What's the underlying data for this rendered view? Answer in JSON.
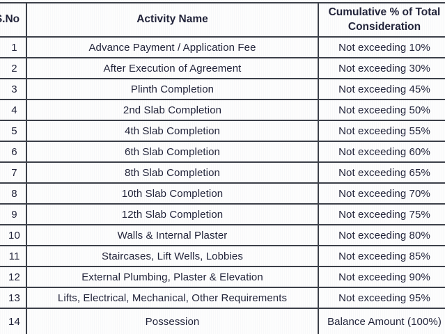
{
  "table": {
    "columns": [
      {
        "key": "sno",
        "label": "S.No"
      },
      {
        "key": "activity",
        "label": "Activity Name"
      },
      {
        "key": "cumulative",
        "label_line1": "Cumulative % of Total",
        "label_line2": "Consideration"
      }
    ],
    "rows": [
      {
        "sno": "1",
        "activity": "Advance Payment / Application Fee",
        "cumulative": "Not exceeding 10%"
      },
      {
        "sno": "2",
        "activity": "After Execution of Agreement",
        "cumulative": "Not exceeding 30%"
      },
      {
        "sno": "3",
        "activity": "Plinth Completion",
        "cumulative": "Not exceeding 45%"
      },
      {
        "sno": "4",
        "activity": "2nd Slab Completion",
        "cumulative": "Not exceeding 50%"
      },
      {
        "sno": "5",
        "activity": "4th Slab Completion",
        "cumulative": "Not exceeding 55%"
      },
      {
        "sno": "6",
        "activity": "6th Slab Completion",
        "cumulative": "Not exceeding 60%"
      },
      {
        "sno": "7",
        "activity": "8th Slab Completion",
        "cumulative": "Not exceeding 65%"
      },
      {
        "sno": "8",
        "activity": "10th Slab Completion",
        "cumulative": "Not exceeding 70%"
      },
      {
        "sno": "9",
        "activity": "12th Slab Completion",
        "cumulative": "Not exceeding 75%"
      },
      {
        "sno": "10",
        "activity": "Walls & Internal Plaster",
        "cumulative": "Not exceeding 80%"
      },
      {
        "sno": "11",
        "activity": "Staircases, Lift Wells, Lobbies",
        "cumulative": "Not exceeding 85%"
      },
      {
        "sno": "12",
        "activity": "External Plumbing, Plaster & Elevation",
        "cumulative": "Not exceeding 90%"
      },
      {
        "sno": "13",
        "activity": "Lifts, Electrical, Mechanical, Other Requirements",
        "cumulative": "Not exceeding 95%"
      },
      {
        "sno": "14",
        "activity": "Possession",
        "cumulative": "Balance Amount (100%)"
      }
    ],
    "colors": {
      "text": "#22243a",
      "border": "#3c4049",
      "background": "#fdfdfd"
    }
  }
}
